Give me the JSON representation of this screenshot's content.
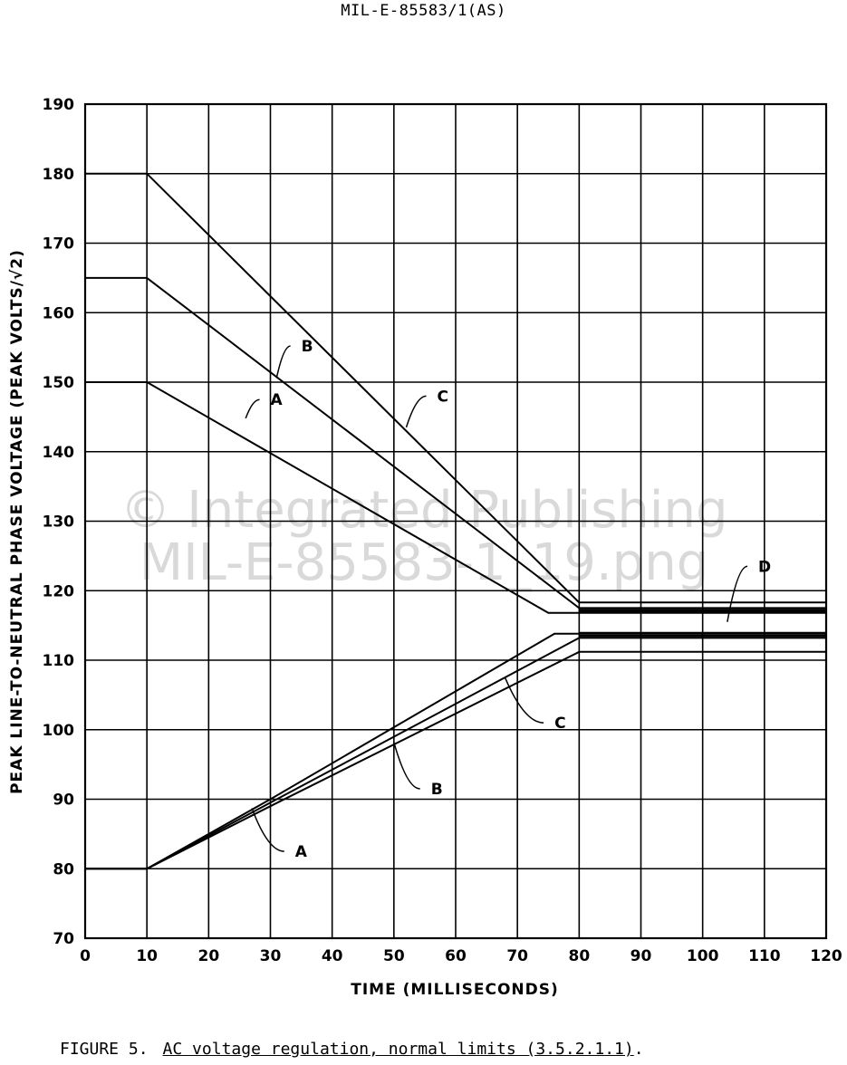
{
  "document_id": "MIL-E-85583/1(AS)",
  "watermark": {
    "line1": "© Integrated Publishing",
    "line2": "MIL-E-85583-1_19.png"
  },
  "caption": {
    "figure_label": "FIGURE 5.",
    "title": "AC voltage regulation, normal limits (3.5.2.1.1)",
    "end": "."
  },
  "chart_data": {
    "type": "line",
    "xlabel": "TIME (MILLISECONDS)",
    "ylabel": "PEAK LINE-TO-NEUTRAL PHASE VOLTAGE (PEAK VOLTS/√2)",
    "xlim": [
      0,
      120
    ],
    "ylim": [
      70,
      190
    ],
    "x_ticks": [
      0,
      10,
      20,
      30,
      40,
      50,
      60,
      70,
      80,
      90,
      100,
      110,
      120
    ],
    "y_ticks": [
      70,
      80,
      90,
      100,
      110,
      120,
      130,
      140,
      150,
      160,
      170,
      180,
      190
    ],
    "grid": true,
    "series": [
      {
        "name": "A",
        "group": "upper",
        "points": [
          [
            0,
            150
          ],
          [
            10,
            150
          ],
          [
            75,
            116.8
          ],
          [
            120,
            116.8
          ]
        ]
      },
      {
        "name": "B",
        "group": "upper",
        "points": [
          [
            0,
            165
          ],
          [
            10,
            165
          ],
          [
            80,
            117.5
          ],
          [
            120,
            117.5
          ]
        ]
      },
      {
        "name": "C",
        "group": "upper",
        "points": [
          [
            0,
            180
          ],
          [
            10,
            180
          ],
          [
            80,
            118.3
          ],
          [
            120,
            118.3
          ]
        ]
      },
      {
        "name": "A",
        "group": "lower",
        "points": [
          [
            0,
            80
          ],
          [
            10,
            80
          ],
          [
            30,
            90
          ],
          [
            76,
            113.8
          ],
          [
            120,
            113.8
          ]
        ]
      },
      {
        "name": "B",
        "group": "lower",
        "points": [
          [
            0,
            80
          ],
          [
            10,
            80
          ],
          [
            30,
            89.5
          ],
          [
            80,
            113.2
          ],
          [
            120,
            113.2
          ]
        ]
      },
      {
        "name": "C",
        "group": "lower",
        "points": [
          [
            0,
            80
          ],
          [
            10,
            80
          ],
          [
            30,
            89
          ],
          [
            80,
            111.2
          ],
          [
            120,
            111.2
          ]
        ]
      },
      {
        "name": "D",
        "group": "band",
        "points": [
          [
            80,
            116.9
          ],
          [
            120,
            116.9
          ]
        ]
      },
      {
        "name": "D",
        "group": "band",
        "points": [
          [
            80,
            117.2
          ],
          [
            120,
            117.2
          ]
        ]
      },
      {
        "name": "D",
        "group": "band",
        "points": [
          [
            80,
            113.5
          ],
          [
            120,
            113.5
          ]
        ]
      },
      {
        "name": "D",
        "group": "band",
        "points": [
          [
            80,
            113.9
          ],
          [
            120,
            113.9
          ]
        ]
      }
    ],
    "annotations": [
      {
        "text": "A",
        "at": [
          26,
          144.8
        ],
        "label": [
          30,
          147.5
        ]
      },
      {
        "text": "B",
        "at": [
          31,
          150.6
        ],
        "label": [
          35,
          155.2
        ]
      },
      {
        "text": "C",
        "at": [
          52,
          143.5
        ],
        "label": [
          57,
          148
        ]
      },
      {
        "text": "D",
        "at": [
          104,
          115.5
        ],
        "label": [
          109,
          123.5
        ]
      },
      {
        "text": "C",
        "at": [
          68,
          107.5
        ],
        "label": [
          76,
          101
        ]
      },
      {
        "text": "B",
        "at": [
          50,
          98.2
        ],
        "label": [
          56,
          91.5
        ]
      },
      {
        "text": "A",
        "at": [
          27,
          88.7
        ],
        "label": [
          34,
          82.5
        ]
      }
    ]
  }
}
